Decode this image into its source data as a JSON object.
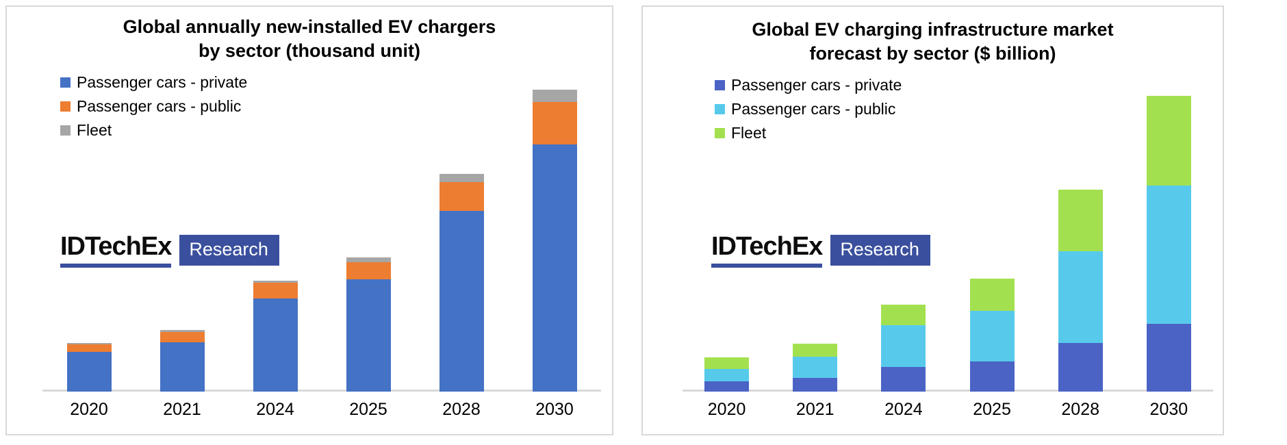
{
  "page": {
    "background_color": "#FFFFFF",
    "panel_border_color": "#D9D9D9",
    "axis_line_color": "#D9D9D9"
  },
  "logo": {
    "brand": "IDTechEx",
    "label": "Research",
    "navy": "#3A4F9E"
  },
  "chart_data": [
    {
      "type": "bar",
      "stacked": true,
      "title": "Global annually new-installed EV chargers by sector (thousand unit)",
      "title_line1": "Global annually new-installed EV chargers",
      "title_line2": "by sector (thousand unit)",
      "xlabel": "",
      "ylabel": "",
      "categories": [
        "2020",
        "2021",
        "2024",
        "2025",
        "2028",
        "2030"
      ],
      "series": [
        {
          "name": "Passenger cars - private",
          "color": "#4472C4",
          "values": [
            13.2,
            16.3,
            30.8,
            37.2,
            59.9,
            81.9
          ]
        },
        {
          "name": "Passenger cars - public",
          "color": "#ED7D31",
          "values": [
            2.5,
            3.4,
            5.2,
            5.7,
            9.5,
            14.1
          ]
        },
        {
          "name": "Fleet",
          "color": "#A6A6A6",
          "values": [
            0.5,
            0.7,
            0.7,
            1.6,
            2.7,
            4.1
          ]
        }
      ],
      "totals": [
        16.2,
        20.4,
        36.7,
        44.5,
        72.1,
        100
      ],
      "value_axis_visible": false,
      "value_note": "no value axis labels shown; values are relative estimates normalized so 2030 total = 100",
      "ylim": [
        0,
        102
      ],
      "grid": false,
      "legend_position": "top-left"
    },
    {
      "type": "bar",
      "stacked": true,
      "title": "Global EV charging infrastructure market forecast by sector ($ billion)",
      "title_line1": "Global EV charging infrastructure market",
      "title_line2": "forecast by sector ($ billion)",
      "xlabel": "",
      "ylabel": "",
      "categories": [
        "2020",
        "2021",
        "2024",
        "2025",
        "2028",
        "2030"
      ],
      "series": [
        {
          "name": "Passenger cars - private",
          "color": "#4A63C4",
          "values": [
            3.5,
            4.6,
            8.3,
            10.2,
            16.4,
            22.9
          ]
        },
        {
          "name": "Passenger cars - public",
          "color": "#57CAEC",
          "values": [
            4.2,
            7.2,
            14.1,
            17.1,
            31.0,
            46.8
          ]
        },
        {
          "name": "Fleet",
          "color": "#A3E04F",
          "values": [
            3.9,
            4.4,
            6.9,
            10.9,
            20.8,
            30.3
          ]
        }
      ],
      "totals": [
        11.6,
        16.2,
        29.3,
        38.2,
        68.2,
        100
      ],
      "value_axis_visible": false,
      "value_note": "no value axis labels shown; values are relative estimates normalized so 2030 total = 100",
      "ylim": [
        0,
        102
      ],
      "grid": false,
      "legend_position": "top-left"
    }
  ]
}
